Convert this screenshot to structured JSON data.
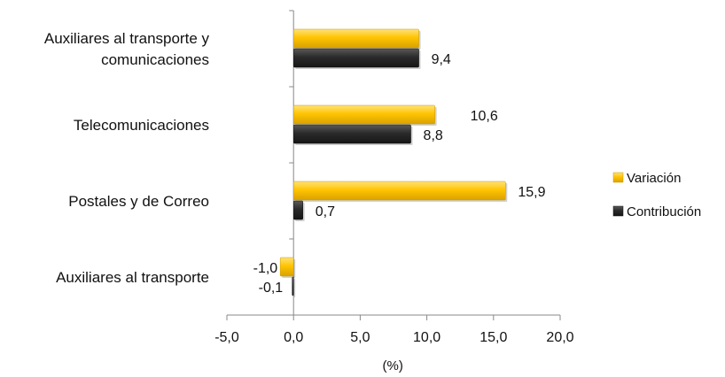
{
  "chart_data": {
    "type": "bar",
    "orientation": "horizontal",
    "categories": [
      "Auxiliares al transporte y comunicaciones",
      "Telecomunicaciones",
      "Postales y de Correo",
      "Auxiliares al transporte"
    ],
    "category_lines": [
      [
        "Auxiliares al transporte y",
        "comunicaciones"
      ],
      [
        "Telecomunicaciones"
      ],
      [
        "Postales y de Correo"
      ],
      [
        "Auxiliares al transporte"
      ]
    ],
    "series": [
      {
        "name": "Variación",
        "values": [
          9.4,
          10.6,
          15.9,
          -1.0
        ],
        "labels": [
          "",
          "10,6",
          "15,9",
          "-1,0"
        ],
        "color": "#FFC400"
      },
      {
        "name": "Contribución",
        "values": [
          9.4,
          8.8,
          0.7,
          -0.1
        ],
        "labels": [
          "9,4",
          "8,8",
          "0,7",
          "-0,1"
        ],
        "color": "#2B2B2B"
      }
    ],
    "xlim": [
      -5,
      20
    ],
    "xticks": [
      -5,
      0,
      5,
      10,
      15,
      20
    ],
    "xtick_labels": [
      "-5,0",
      "0,0",
      "5,0",
      "10,0",
      "15,0",
      "20,0"
    ],
    "xlabel": "(%)",
    "grid": false,
    "legend_position": "right"
  }
}
